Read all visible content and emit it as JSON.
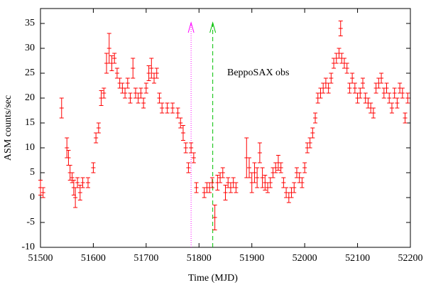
{
  "chart_data": {
    "type": "scatter",
    "xlabel": "Time (MJD)",
    "ylabel": "ASM counts/sec",
    "annotation": "BeppoSAX obs",
    "xlim": [
      51500,
      52200
    ],
    "xticks": [
      51500,
      51600,
      51700,
      51800,
      51900,
      52000,
      52100,
      52200
    ],
    "ylim": [
      -10,
      38
    ],
    "yticks": [
      -10,
      -5,
      0,
      5,
      10,
      15,
      20,
      25,
      30,
      35
    ],
    "markers": [
      {
        "x": 51785,
        "color": "#ff00ff",
        "style": "dotted"
      },
      {
        "x": 51826,
        "color": "#00c000",
        "style": "dashed"
      }
    ],
    "series": [
      {
        "color": "#ff0000",
        "x": [
          51500,
          51505,
          51540,
          51550,
          51553,
          51556,
          51560,
          51563,
          51566,
          51570,
          51575,
          51580,
          51590,
          51600,
          51605,
          51610,
          51615,
          51620,
          51625,
          51630,
          51635,
          51640,
          51645,
          51650,
          51655,
          51660,
          51665,
          51670,
          51675,
          51680,
          51685,
          51690,
          51695,
          51700,
          51705,
          51710,
          51715,
          51720,
          51725,
          51730,
          51740,
          51750,
          51760,
          51765,
          51770,
          51775,
          51780,
          51785,
          51790,
          51795,
          51810,
          51815,
          51820,
          51825,
          51830,
          51835,
          51840,
          51845,
          51850,
          51855,
          51860,
          51865,
          51870,
          51890,
          51895,
          51900,
          51905,
          51910,
          51915,
          51920,
          51925,
          51930,
          51935,
          51940,
          51945,
          51950,
          51955,
          51960,
          51965,
          51970,
          51975,
          51980,
          51985,
          51990,
          51995,
          52000,
          52005,
          52010,
          52015,
          52020,
          52025,
          52030,
          52035,
          52040,
          52045,
          52050,
          52055,
          52060,
          52065,
          52068,
          52070,
          52075,
          52080,
          52085,
          52090,
          52095,
          52100,
          52105,
          52110,
          52115,
          52120,
          52125,
          52130,
          52135,
          52140,
          52145,
          52150,
          52155,
          52160,
          52165,
          52170,
          52175,
          52180,
          52185,
          52190,
          52195
        ],
        "values": [
          2,
          1,
          18,
          10,
          8,
          5,
          4,
          2,
          0,
          3,
          1,
          3,
          3,
          6,
          12,
          14,
          20,
          21,
          27,
          30,
          27,
          28,
          25,
          23,
          22,
          21,
          23,
          20,
          26,
          21,
          20,
          21,
          19,
          22,
          25,
          26,
          24,
          25,
          20,
          18,
          18,
          18,
          17,
          15,
          13,
          10,
          6,
          10,
          8,
          2,
          1,
          2,
          2,
          3,
          -4,
          3,
          4,
          5,
          1,
          3,
          2,
          3,
          2,
          8,
          6,
          3,
          5,
          4,
          9,
          4,
          3,
          2,
          3,
          5,
          6,
          7,
          6,
          3,
          1,
          0,
          1,
          2,
          5,
          4,
          3,
          6,
          10,
          11,
          13,
          16,
          20,
          21,
          22,
          23,
          22,
          24,
          27,
          28,
          29,
          34,
          28,
          27,
          26,
          22,
          24,
          22,
          20,
          21,
          23,
          20,
          19,
          18,
          17,
          22,
          23,
          24,
          21,
          22,
          20,
          18,
          21,
          19,
          22,
          21,
          16,
          20
        ],
        "errors": [
          1.5,
          1,
          2,
          2,
          1.5,
          1.5,
          1,
          1.5,
          2,
          1,
          1.5,
          1,
          1,
          1,
          1,
          1,
          1.5,
          1,
          2,
          3,
          1.5,
          1,
          1,
          1,
          1,
          1,
          1,
          1,
          2,
          1,
          1,
          1,
          1,
          1,
          1.5,
          2,
          1,
          1,
          1,
          1,
          1,
          1,
          1,
          1,
          1.5,
          1,
          1,
          1,
          1,
          1,
          1,
          1,
          1,
          1,
          2.5,
          1.5,
          1,
          1,
          1.5,
          1,
          1,
          1,
          1,
          4,
          2,
          2,
          2,
          2,
          2,
          2,
          1.5,
          1,
          1,
          1,
          1,
          1.5,
          1,
          1,
          1,
          1,
          1,
          1,
          1,
          1,
          1,
          1,
          1,
          1,
          1,
          1,
          1,
          1,
          1,
          1,
          1,
          1,
          1,
          1,
          1,
          1.5,
          1,
          1,
          1,
          1,
          1,
          1,
          1,
          1,
          1,
          1,
          1,
          1,
          1,
          1,
          1,
          1,
          1,
          1,
          1,
          1,
          1,
          1,
          1,
          1,
          1,
          1
        ]
      }
    ]
  }
}
